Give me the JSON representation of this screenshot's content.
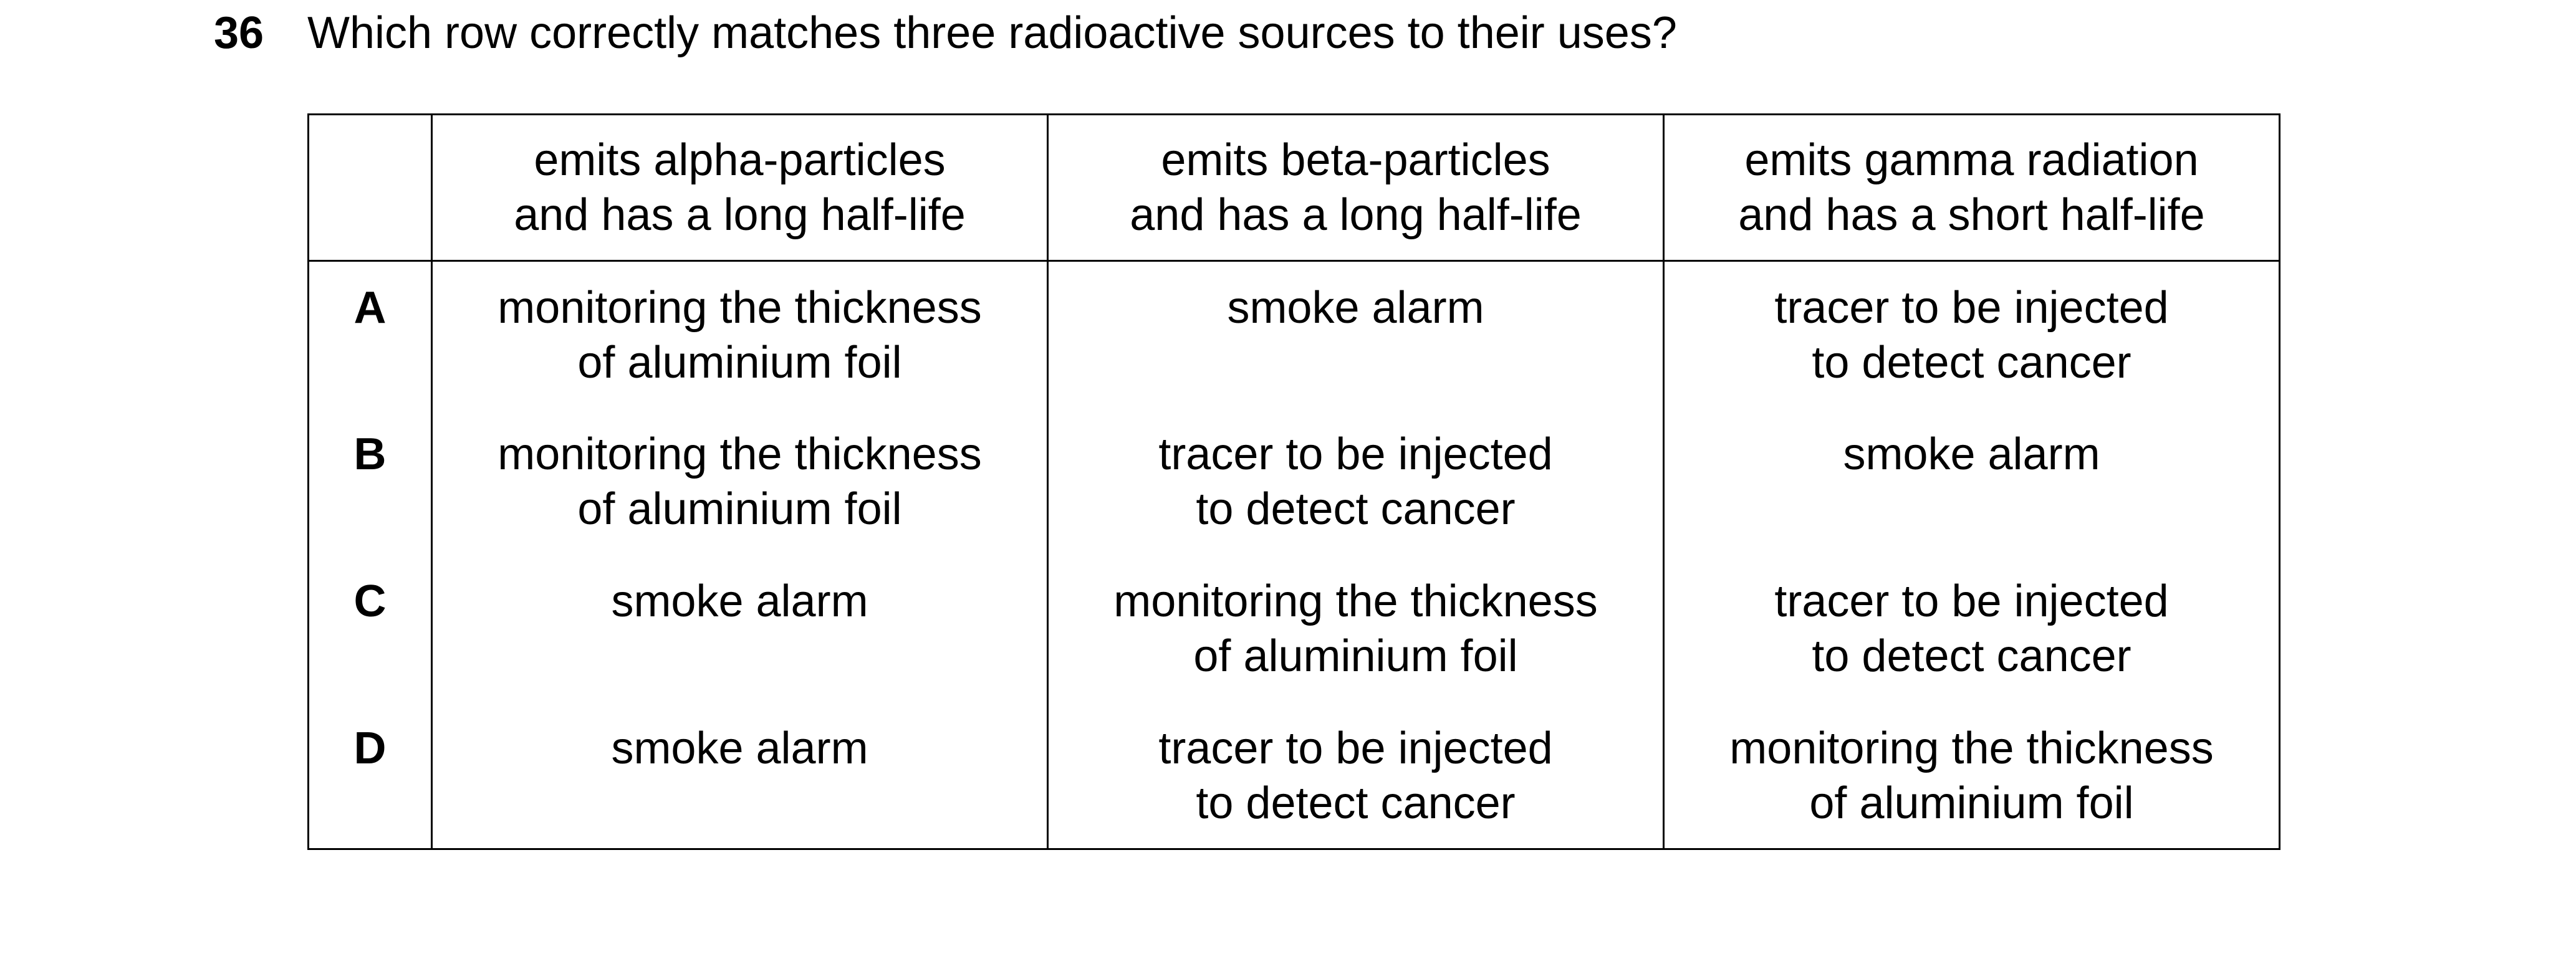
{
  "question": {
    "number": "36",
    "text": "Which row correctly matches three radioactive sources to their uses?"
  },
  "table": {
    "headers": [
      [
        "emits alpha-particles",
        "and has a long half-life"
      ],
      [
        "emits beta-particles",
        "and has a long half-life"
      ],
      [
        "emits gamma radiation",
        "and has a short half-life"
      ]
    ],
    "rows": [
      {
        "letter": "A",
        "cells": [
          [
            "monitoring the thickness",
            "of aluminium foil"
          ],
          [
            "smoke alarm",
            ""
          ],
          [
            "tracer to be injected",
            "to detect cancer"
          ]
        ]
      },
      {
        "letter": "B",
        "cells": [
          [
            "monitoring the thickness",
            "of aluminium foil"
          ],
          [
            "tracer to be injected",
            "to detect cancer"
          ],
          [
            "smoke alarm",
            ""
          ]
        ]
      },
      {
        "letter": "C",
        "cells": [
          [
            "smoke alarm",
            ""
          ],
          [
            "monitoring the thickness",
            "of aluminium foil"
          ],
          [
            "tracer to be injected",
            "to detect cancer"
          ]
        ]
      },
      {
        "letter": "D",
        "cells": [
          [
            "smoke alarm",
            ""
          ],
          [
            "tracer to be injected",
            "to detect cancer"
          ],
          [
            "monitoring the thickness",
            "of aluminium foil"
          ]
        ]
      }
    ]
  }
}
